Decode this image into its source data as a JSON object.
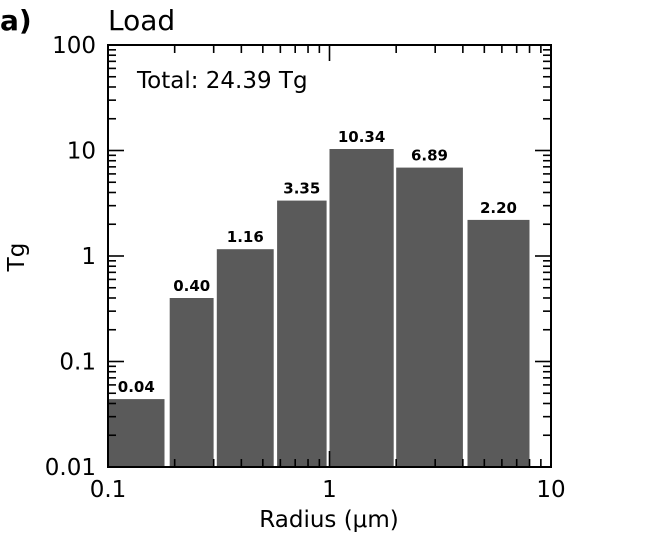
{
  "panel_label": "a)",
  "chart_data": {
    "type": "bar",
    "title": "Load",
    "annotation": "Total: 24.39 Tg",
    "xlabel": "Radius (μm)",
    "ylabel": "Tg",
    "x_scale": "log",
    "y_scale": "log",
    "xlim": [
      0.1,
      10
    ],
    "ylim": [
      0.01,
      100
    ],
    "x_ticks": [
      0.1,
      1,
      10
    ],
    "x_tick_labels": [
      "0.1",
      "1",
      "10"
    ],
    "y_ticks": [
      0.01,
      0.1,
      1,
      10,
      100
    ],
    "y_tick_labels": [
      "0.01",
      "0.1",
      "1",
      "10",
      "100"
    ],
    "bins": [
      {
        "x_start": 0.1,
        "x_end": 0.18,
        "value": 0.044,
        "label": "0.04"
      },
      {
        "x_start": 0.19,
        "x_end": 0.3,
        "value": 0.4,
        "label": "0.40"
      },
      {
        "x_start": 0.31,
        "x_end": 0.56,
        "value": 1.16,
        "label": "1.16"
      },
      {
        "x_start": 0.58,
        "x_end": 0.97,
        "value": 3.35,
        "label": "3.35"
      },
      {
        "x_start": 1.0,
        "x_end": 1.95,
        "value": 10.34,
        "label": "10.34"
      },
      {
        "x_start": 2.0,
        "x_end": 4.0,
        "value": 6.89,
        "label": "6.89"
      },
      {
        "x_start": 4.2,
        "x_end": 8.0,
        "value": 2.2,
        "label": "2.20"
      }
    ],
    "bar_color": "#5a5a5a",
    "grid": false,
    "legend": "none"
  }
}
